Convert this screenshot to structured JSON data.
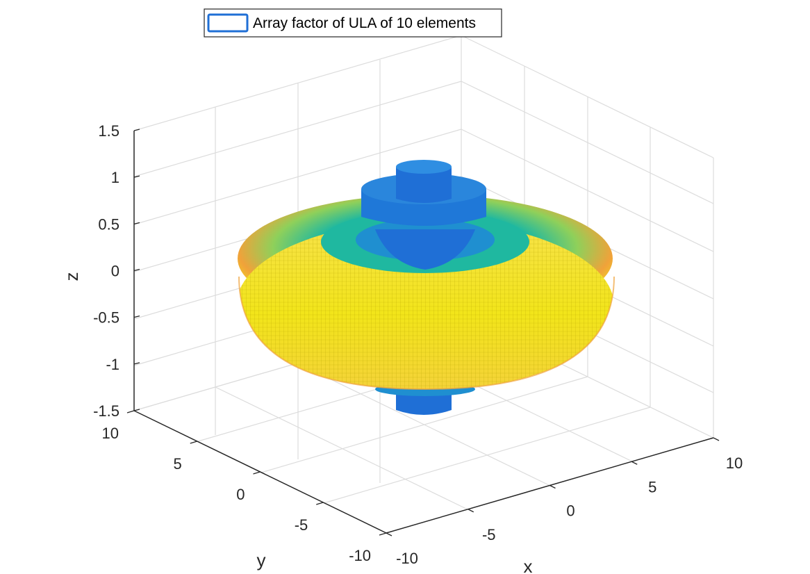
{
  "chart_data": {
    "type": "surface-3d",
    "legend": {
      "label": "Array factor of ULA of 10 elements",
      "placement": "top"
    },
    "xlabel": "x",
    "ylabel": "y",
    "zlabel": "z",
    "xlim": [
      -10,
      10
    ],
    "ylim": [
      -10,
      10
    ],
    "zlim": [
      -1.5,
      1.5
    ],
    "x_ticks": [
      "-10",
      "-5",
      "0",
      "5",
      "10"
    ],
    "y_ticks": [
      "-10",
      "-5",
      "0",
      "5",
      "10"
    ],
    "z_ticks": [
      "-1.5",
      "-1",
      "-0.5",
      "0",
      "0.5",
      "1",
      "1.5"
    ],
    "grid": true,
    "colormap": "parula",
    "colors": {
      "low": "#1f6fd6",
      "mid": "#1fb8a0",
      "high": "#f2e51a",
      "edge": "#f0a23a"
    }
  }
}
